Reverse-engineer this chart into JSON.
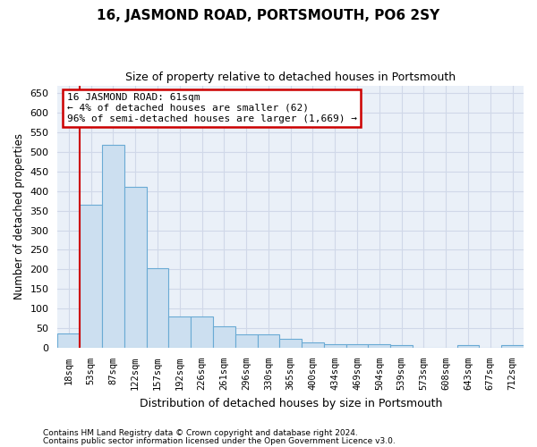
{
  "title": "16, JASMOND ROAD, PORTSMOUTH, PO6 2SY",
  "subtitle": "Size of property relative to detached houses in Portsmouth",
  "xlabel": "Distribution of detached houses by size in Portsmouth",
  "ylabel": "Number of detached properties",
  "bar_color": "#ccdff0",
  "bar_edge_color": "#6aaad4",
  "background_color": "#eaf0f8",
  "annotation_box_color": "#ffffff",
  "annotation_box_edge": "#cc0000",
  "vline_color": "#cc0000",
  "vline_x_idx": 1,
  "annotation_text": "16 JASMOND ROAD: 61sqm\n← 4% of detached houses are smaller (62)\n96% of semi-detached houses are larger (1,669) →",
  "categories": [
    "18sqm",
    "53sqm",
    "87sqm",
    "122sqm",
    "157sqm",
    "192sqm",
    "226sqm",
    "261sqm",
    "296sqm",
    "330sqm",
    "365sqm",
    "400sqm",
    "434sqm",
    "469sqm",
    "504sqm",
    "539sqm",
    "573sqm",
    "608sqm",
    "643sqm",
    "677sqm",
    "712sqm"
  ],
  "values": [
    37,
    365,
    519,
    411,
    202,
    80,
    80,
    55,
    35,
    33,
    22,
    13,
    10,
    10,
    8,
    7,
    1,
    1,
    6,
    1,
    6
  ],
  "ylim": [
    0,
    670
  ],
  "yticks": [
    0,
    50,
    100,
    150,
    200,
    250,
    300,
    350,
    400,
    450,
    500,
    550,
    600,
    650
  ],
  "grid_color": "#d0d8e8",
  "footer1": "Contains HM Land Registry data © Crown copyright and database right 2024.",
  "footer2": "Contains public sector information licensed under the Open Government Licence v3.0."
}
